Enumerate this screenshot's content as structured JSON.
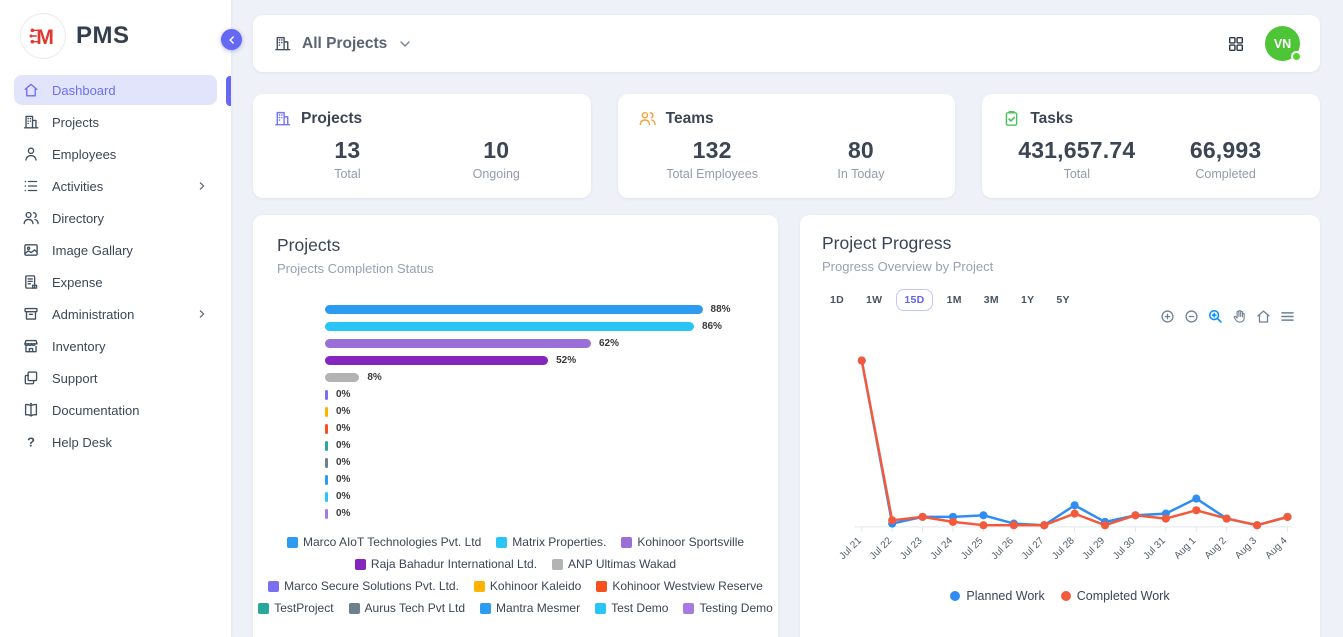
{
  "sidebar": {
    "logo_text": "PMS",
    "items": [
      {
        "label": "Dashboard",
        "icon": "home-icon",
        "active": true
      },
      {
        "label": "Projects",
        "icon": "building-icon"
      },
      {
        "label": "Employees",
        "icon": "person-icon"
      },
      {
        "label": "Activities",
        "icon": "list-icon",
        "chevron": true
      },
      {
        "label": "Directory",
        "icon": "people-icon"
      },
      {
        "label": "Image Gallary",
        "icon": "image-icon"
      },
      {
        "label": "Expense",
        "icon": "receipt-icon"
      },
      {
        "label": "Administration",
        "icon": "archive-icon",
        "chevron": true
      },
      {
        "label": "Inventory",
        "icon": "store-icon"
      },
      {
        "label": "Support",
        "icon": "copy-icon"
      },
      {
        "label": "Documentation",
        "icon": "book-icon"
      },
      {
        "label": "Help Desk",
        "icon": "question-icon"
      }
    ]
  },
  "topbar": {
    "project_filter": "All Projects",
    "avatar_initials": "VN",
    "avatar_color": "#4ec437"
  },
  "stats": [
    {
      "title": "Projects",
      "icon": "building-icon",
      "accent": "#7177f5",
      "metrics": [
        {
          "value": "13",
          "label": "Total"
        },
        {
          "value": "10",
          "label": "Ongoing"
        }
      ]
    },
    {
      "title": "Teams",
      "icon": "team-icon",
      "accent": "#f2a33c",
      "metrics": [
        {
          "value": "132",
          "label": "Total Employees"
        },
        {
          "value": "80",
          "label": "In Today"
        }
      ]
    },
    {
      "title": "Tasks",
      "icon": "task-icon",
      "accent": "#4cc25a",
      "metrics": [
        {
          "value": "431,657.74",
          "label": "Total"
        },
        {
          "value": "66,993",
          "label": "Completed"
        }
      ]
    }
  ],
  "projects_panel": {
    "title": "Projects",
    "subtitle": "Projects Completion Status",
    "legend_rows": [
      [
        0,
        1,
        2
      ],
      [
        3,
        4
      ],
      [
        5,
        6,
        7
      ],
      [
        8,
        9,
        10,
        11,
        12
      ]
    ]
  },
  "progress_panel": {
    "title": "Project Progress",
    "subtitle": "Progress Overview by Project",
    "ranges": [
      "1D",
      "1W",
      "15D",
      "1M",
      "3M",
      "1Y",
      "5Y"
    ],
    "selected_range": "15D",
    "toolbar_icons": [
      "zoom-in-icon",
      "zoom-out-icon",
      "selection-zoom-icon",
      "pan-icon",
      "home-icon",
      "menu-icon"
    ]
  },
  "chart_data": [
    {
      "type": "bar",
      "orientation": "horizontal",
      "title": "Projects Completion Status",
      "unit": "%",
      "xlim": [
        0,
        100
      ],
      "series": [
        {
          "name": "Marco AIoT Technologies Pvt. Ltd",
          "value": 88,
          "color": "#2d9bf0"
        },
        {
          "name": "Matrix Properties.",
          "value": 86,
          "color": "#29c5f6"
        },
        {
          "name": "Kohinoor Sportsville",
          "value": 62,
          "color": "#9b6fd8"
        },
        {
          "name": "Raja Bahadur International Ltd.",
          "value": 52,
          "color": "#8426bd"
        },
        {
          "name": "ANP Ultimas Wakad",
          "value": 8,
          "color": "#b3b3b3"
        },
        {
          "name": "Marco Secure Solutions Pvt. Ltd.",
          "value": 0,
          "color": "#7a6ff0"
        },
        {
          "name": "Kohinoor Kaleido",
          "value": 0,
          "color": "#ffb300"
        },
        {
          "name": "Kohinoor Westview Reserve",
          "value": 0,
          "color": "#f4511e"
        },
        {
          "name": "TestProject",
          "value": 0,
          "color": "#2aa79b"
        },
        {
          "name": "Aurus Tech Pvt Ltd",
          "value": 0,
          "color": "#6e7f8d"
        },
        {
          "name": "Mantra Mesmer",
          "value": 0,
          "color": "#2d9bf0"
        },
        {
          "name": "Test Demo",
          "value": 0,
          "color": "#29c5f6"
        },
        {
          "name": "Testing Demo",
          "value": 0,
          "color": "#a77ae0"
        }
      ]
    },
    {
      "type": "line",
      "title": "Project Progress",
      "x": [
        "Jul 21",
        "Jul 22",
        "Jul 23",
        "Jul 24",
        "Jul 25",
        "Jul 26",
        "Jul 27",
        "Jul 28",
        "Jul 29",
        "Jul 30",
        "Jul 31",
        "Aug 1",
        "Aug 2",
        "Aug 3",
        "Aug 4"
      ],
      "ylim": [
        0,
        105
      ],
      "grid": false,
      "legend_position": "bottom",
      "series": [
        {
          "name": "Planned Work",
          "color": "#2e8df2",
          "values": [
            100,
            2,
            6,
            6,
            7,
            2,
            1,
            13,
            3,
            7,
            8,
            17,
            5,
            1,
            6
          ]
        },
        {
          "name": "Completed Work",
          "color": "#f4593c",
          "values": [
            100,
            4,
            6,
            3,
            1,
            1,
            1,
            8,
            1,
            7,
            5,
            10,
            5,
            1,
            6
          ]
        }
      ]
    }
  ]
}
